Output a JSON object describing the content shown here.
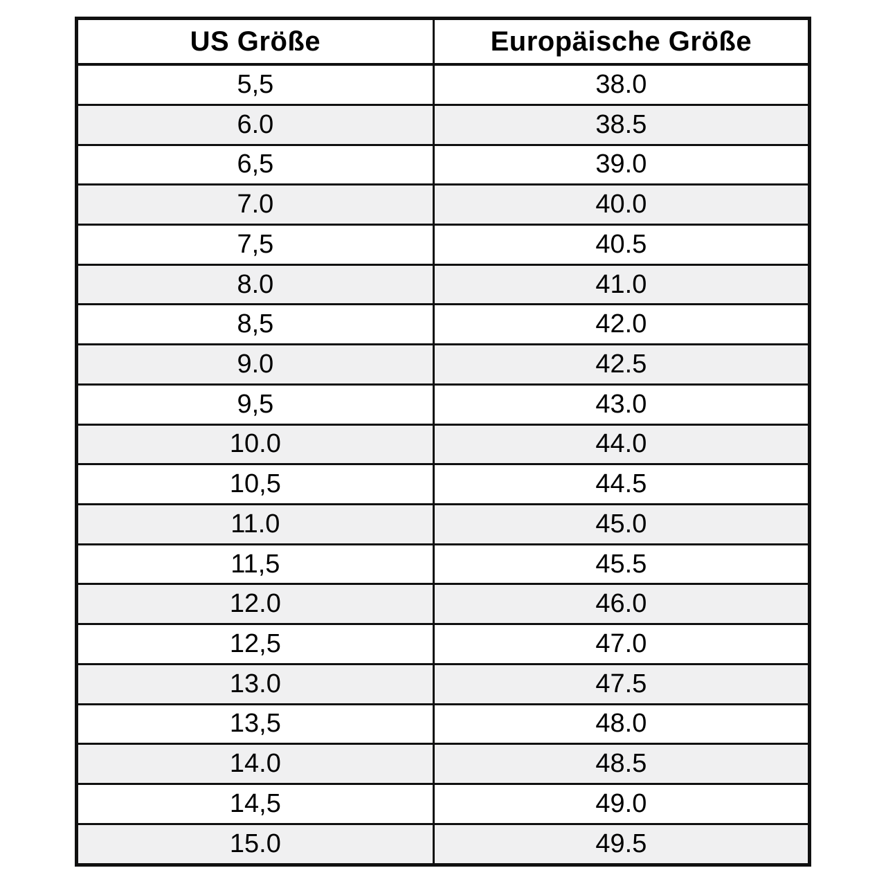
{
  "chart_data": {
    "type": "table",
    "columns": [
      "US Größe",
      "Europäische Größe"
    ],
    "rows": [
      [
        "5,5",
        "38.0"
      ],
      [
        "6.0",
        "38.5"
      ],
      [
        "6,5",
        "39.0"
      ],
      [
        "7.0",
        "40.0"
      ],
      [
        "7,5",
        "40.5"
      ],
      [
        "8.0",
        "41.0"
      ],
      [
        "8,5",
        "42.0"
      ],
      [
        "9.0",
        "42.5"
      ],
      [
        "9,5",
        "43.0"
      ],
      [
        "10.0",
        "44.0"
      ],
      [
        "10,5",
        "44.5"
      ],
      [
        "11.0",
        "45.0"
      ],
      [
        "11,5",
        "45.5"
      ],
      [
        "12.0",
        "46.0"
      ],
      [
        "12,5",
        "47.0"
      ],
      [
        "13.0",
        "47.5"
      ],
      [
        "13,5",
        "48.0"
      ],
      [
        "14.0",
        "48.5"
      ],
      [
        "14,5",
        "49.0"
      ],
      [
        "15.0",
        "49.5"
      ]
    ],
    "layout": {
      "stripe_pattern": "every second data row shaded",
      "text_align": "center",
      "grid": "on"
    },
    "colors": {
      "row_stripe": "#f0f0f1",
      "row_plain": "#ffffff",
      "border": "#101010",
      "text": "#000000"
    }
  }
}
